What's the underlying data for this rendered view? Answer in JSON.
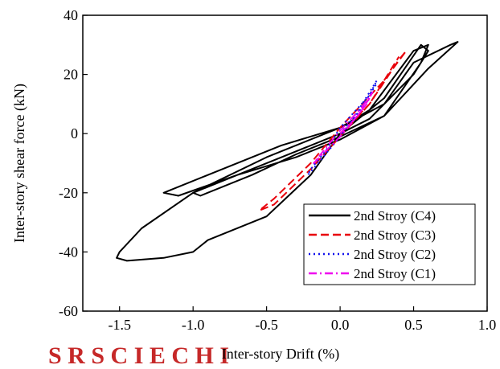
{
  "watermark_text": "S  R  S  C  I  E  C  H  I",
  "chart_data": {
    "type": "line",
    "xlabel": "Inter-story Drift (%)",
    "ylabel": "Inter-story shear force (kN)",
    "xlim": [
      -1.75,
      1.0
    ],
    "ylim": [
      -60,
      40
    ],
    "xticks": [
      "-1.5",
      "-1.0",
      "-0.5",
      "0.0",
      "0.5",
      "1.0"
    ],
    "yticks": [
      "-60",
      "-40",
      "-20",
      "0",
      "20",
      "40"
    ],
    "legend_position": "bottom-right",
    "grid": false,
    "series": [
      {
        "name": "2nd Stroy (C4)",
        "color": "#000000",
        "dash": "solid",
        "points": [
          [
            0,
            0
          ],
          [
            0.2,
            5
          ],
          [
            0.5,
            20
          ],
          [
            0.6,
            28
          ],
          [
            0.55,
            30
          ],
          [
            0.3,
            12
          ],
          [
            0,
            0
          ],
          [
            -0.3,
            -6
          ],
          [
            -0.7,
            -14
          ],
          [
            -1.0,
            -20
          ],
          [
            -0.95,
            -21
          ],
          [
            -0.6,
            -14
          ],
          [
            -0.3,
            -7
          ],
          [
            0,
            -1
          ],
          [
            0.3,
            6
          ],
          [
            0.55,
            24
          ],
          [
            0.6,
            30
          ],
          [
            0.5,
            28
          ],
          [
            0.2,
            8
          ],
          [
            0,
            2
          ],
          [
            -0.4,
            -4
          ],
          [
            -0.9,
            -14
          ],
          [
            -1.2,
            -20
          ],
          [
            -1.1,
            -21
          ],
          [
            -0.7,
            -14
          ],
          [
            -0.3,
            -8
          ],
          [
            0,
            -2
          ],
          [
            0.3,
            6
          ],
          [
            0.6,
            22
          ],
          [
            0.8,
            31
          ],
          [
            0.75,
            30
          ],
          [
            0.5,
            24
          ],
          [
            0.3,
            10
          ],
          [
            0,
            2
          ],
          [
            -0.5,
            -8
          ],
          [
            -1.0,
            -20
          ],
          [
            -1.35,
            -32
          ],
          [
            -1.5,
            -40
          ],
          [
            -1.52,
            -42
          ],
          [
            -1.45,
            -43
          ],
          [
            -1.2,
            -42
          ],
          [
            -1.0,
            -40
          ],
          [
            -0.9,
            -36
          ],
          [
            -0.5,
            -28
          ],
          [
            -0.2,
            -14
          ],
          [
            0,
            0
          ]
        ]
      },
      {
        "name": "2nd Stroy (C3)",
        "color": "#e8000b",
        "dash": "dashed",
        "points": [
          [
            0,
            0
          ],
          [
            0.2,
            10
          ],
          [
            0.4,
            25
          ],
          [
            0.45,
            28
          ],
          [
            0.3,
            18
          ],
          [
            0,
            2
          ],
          [
            -0.2,
            -10
          ],
          [
            -0.45,
            -22
          ],
          [
            -0.55,
            -26
          ],
          [
            -0.45,
            -24
          ],
          [
            -0.2,
            -12
          ],
          [
            0,
            -1
          ],
          [
            0.2,
            10
          ],
          [
            0.35,
            22
          ],
          [
            0.4,
            26
          ]
        ]
      },
      {
        "name": "2nd Stroy (C2)",
        "color": "#1010ee",
        "dash": "dotted",
        "points": [
          [
            0,
            0
          ],
          [
            0.1,
            6
          ],
          [
            0.2,
            14
          ],
          [
            0.25,
            18
          ],
          [
            0.2,
            13
          ],
          [
            0,
            2
          ],
          [
            -0.1,
            -6
          ],
          [
            -0.2,
            -12
          ],
          [
            -0.22,
            -14
          ],
          [
            -0.15,
            -10
          ],
          [
            0,
            -1
          ],
          [
            0.15,
            9
          ],
          [
            0.25,
            17
          ]
        ]
      },
      {
        "name": "2nd Stroy (C1)",
        "color": "#ee00ee",
        "dash": "dashdot",
        "points": [
          [
            0,
            0
          ],
          [
            0.1,
            5
          ],
          [
            0.18,
            10
          ],
          [
            0.22,
            14
          ],
          [
            0.15,
            9
          ],
          [
            0,
            1
          ],
          [
            -0.1,
            -5
          ],
          [
            -0.18,
            -10
          ],
          [
            -0.12,
            -7
          ],
          [
            0,
            -1
          ],
          [
            0.12,
            6
          ],
          [
            0.2,
            12
          ]
        ]
      }
    ]
  }
}
